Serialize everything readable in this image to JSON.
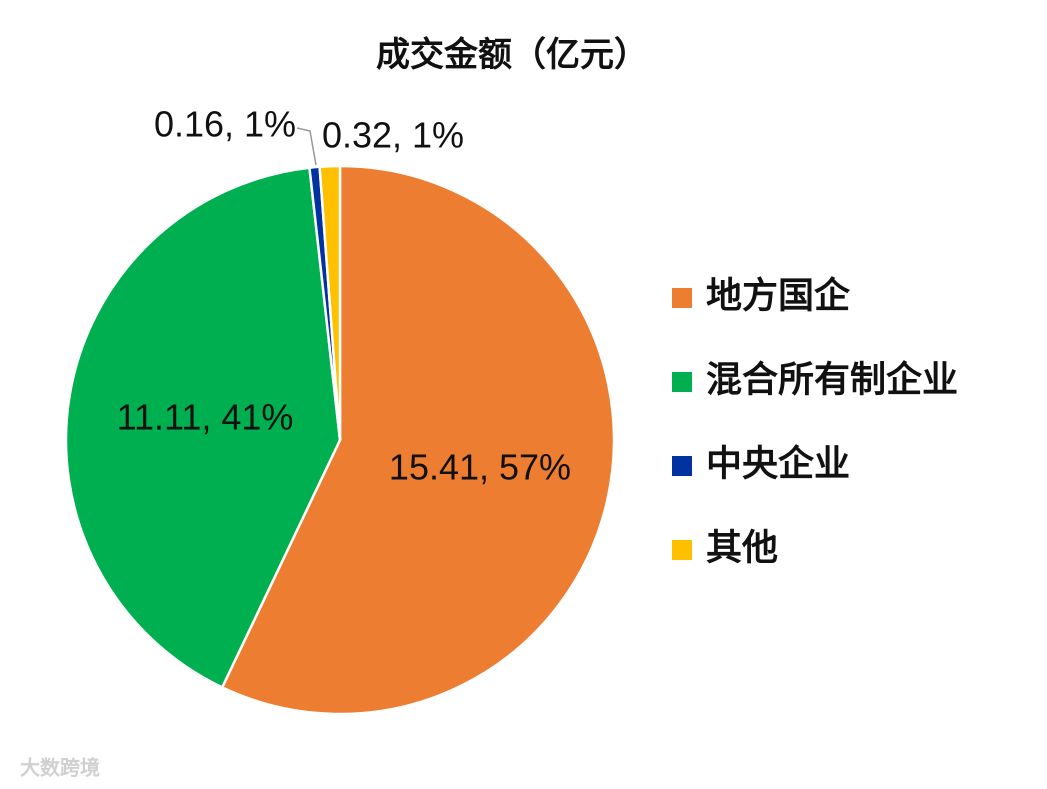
{
  "chart_data": {
    "type": "pie",
    "title": "成交金额（亿元）",
    "categories": [
      "地方国企",
      "混合所有制企业",
      "中央企业",
      "其他"
    ],
    "values": [
      15.41,
      11.11,
      0.16,
      0.32
    ],
    "value_labels": [
      "15.41, 57%",
      "11.11, 41%",
      "0.16, 1%",
      "0.32, 1%"
    ],
    "colors": [
      "#ed7d31",
      "#00b050",
      "#0033a0",
      "#ffc000"
    ],
    "legend": "right"
  },
  "watermark": "大数跨境"
}
